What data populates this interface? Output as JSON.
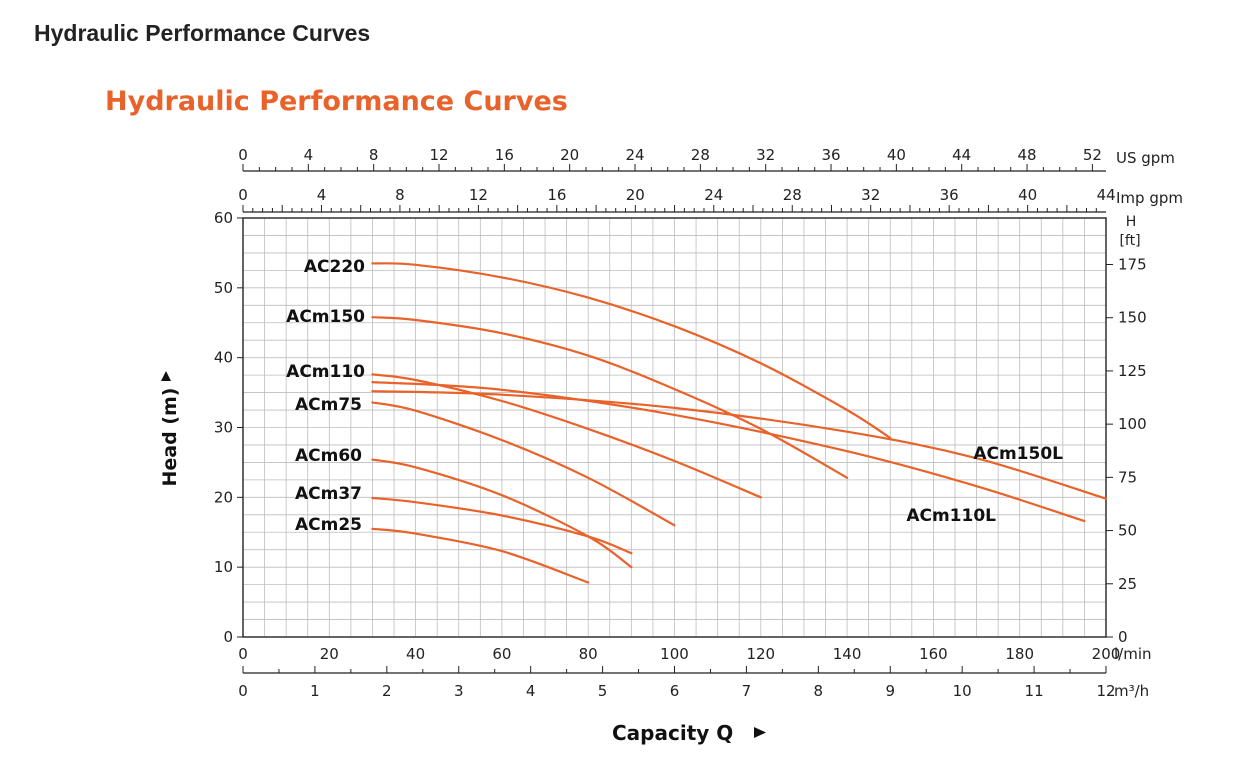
{
  "page": {
    "title": "Hydraulic Performance Curves"
  },
  "colors": {
    "curve": "#e8622a",
    "title_accent": "#e8622a",
    "grid": "#bdbdbd",
    "axis": "#222222"
  },
  "chart_data": {
    "type": "line",
    "title": "Hydraulic Performance Curves",
    "xlabel": "Capacity Q",
    "ylabel": "Head (m)",
    "xlim": [
      0,
      200
    ],
    "ylim": [
      0,
      60
    ],
    "grid": true,
    "axes": {
      "bottom_main": {
        "unit": "l/min",
        "ticks": [
          0,
          20,
          40,
          60,
          80,
          100,
          120,
          140,
          160,
          180,
          200
        ]
      },
      "bottom_secondary": {
        "unit": "m³/h",
        "ticks": [
          0,
          1,
          2,
          3,
          4,
          5,
          6,
          7,
          8,
          9,
          10,
          11,
          12
        ]
      },
      "top_us": {
        "unit": "US gpm",
        "ticks": [
          0,
          4,
          8,
          12,
          16,
          20,
          24,
          28,
          32,
          36,
          40,
          44,
          48,
          52
        ]
      },
      "top_imp": {
        "unit": "Imp gpm",
        "ticks": [
          0,
          4,
          8,
          12,
          16,
          20,
          24,
          28,
          32,
          36,
          40,
          44
        ]
      },
      "left": {
        "unit": "",
        "ticks": [
          0,
          10,
          20,
          30,
          40,
          50,
          60
        ]
      },
      "right": {
        "unit_line1": "H",
        "unit_line2": "[ft]",
        "ticks": [
          0,
          25,
          50,
          75,
          100,
          125,
          150,
          175
        ]
      }
    },
    "series": [
      {
        "name": "AC220",
        "x": [
          30,
          40,
          60,
          80,
          100,
          120,
          140,
          150
        ],
        "y": [
          53.5,
          53.3,
          51.5,
          48.6,
          44.5,
          39.2,
          32.5,
          28.5
        ]
      },
      {
        "name": "ACm150",
        "x": [
          30,
          40,
          60,
          80,
          100,
          120,
          140
        ],
        "y": [
          45.8,
          45.4,
          43.5,
          40.3,
          35.5,
          29.8,
          22.8
        ]
      },
      {
        "name": "ACm110",
        "x": [
          30,
          40,
          60,
          80,
          100,
          120
        ],
        "y": [
          37.6,
          36.8,
          33.8,
          29.8,
          25.2,
          20.0
        ]
      },
      {
        "name": "ACm75",
        "x": [
          30,
          40,
          60,
          80,
          100
        ],
        "y": [
          33.6,
          32.4,
          28.2,
          22.8,
          16.0
        ]
      },
      {
        "name": "ACm60",
        "x": [
          30,
          40,
          60,
          80,
          90
        ],
        "y": [
          25.4,
          24.3,
          20.3,
          14.4,
          10.0
        ]
      },
      {
        "name": "ACm37",
        "x": [
          30,
          40,
          60,
          80,
          90
        ],
        "y": [
          19.9,
          19.3,
          17.4,
          14.4,
          12.0
        ]
      },
      {
        "name": "ACm25",
        "x": [
          30,
          40,
          60,
          80
        ],
        "y": [
          15.5,
          14.8,
          12.3,
          7.8
        ]
      },
      {
        "name": "ACm150L",
        "x": [
          30,
          60,
          100,
          140,
          170,
          200
        ],
        "y": [
          35.2,
          34.7,
          32.8,
          29.4,
          25.6,
          19.8
        ]
      },
      {
        "name": "ACm110L",
        "x": [
          30,
          60,
          100,
          140,
          170,
          195
        ],
        "y": [
          36.5,
          35.4,
          31.8,
          26.6,
          21.6,
          16.6
        ]
      }
    ]
  }
}
